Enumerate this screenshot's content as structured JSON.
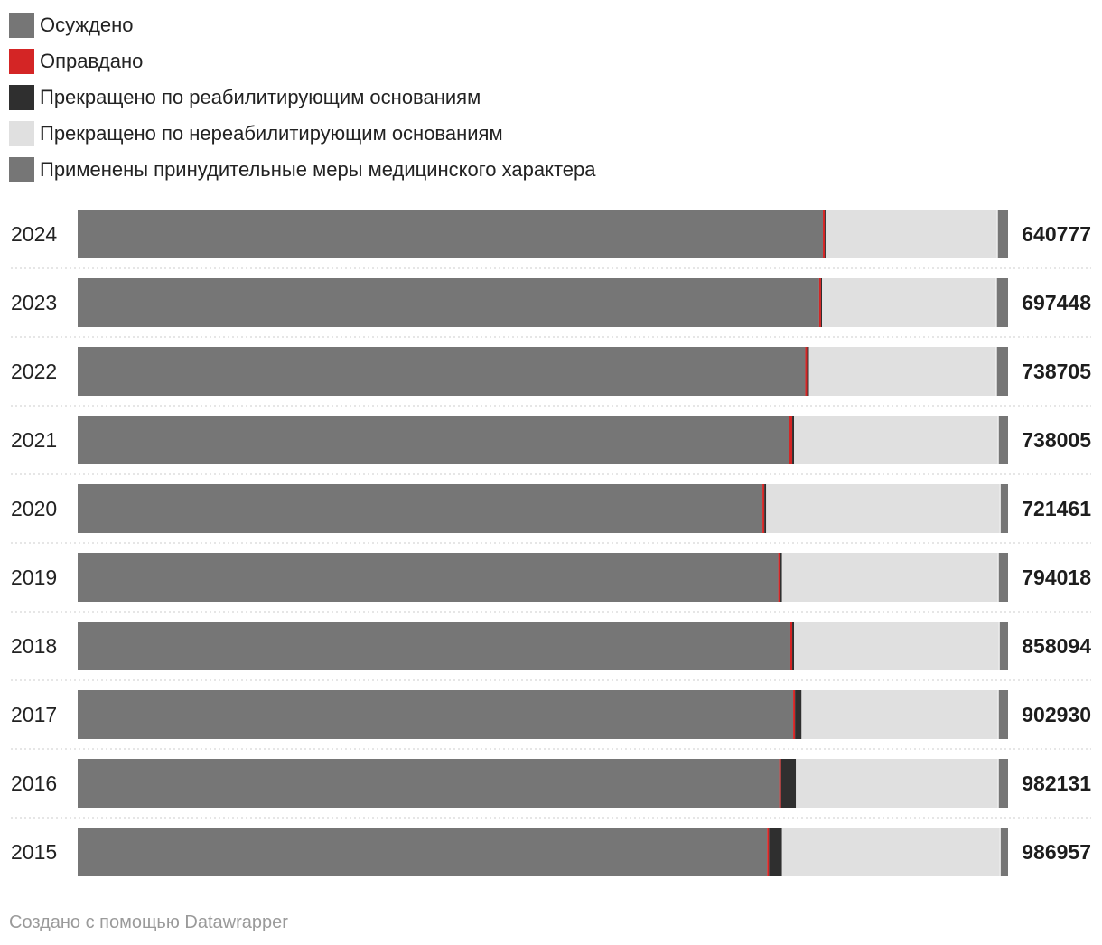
{
  "chart_data": {
    "type": "bar",
    "orientation": "horizontal",
    "stacked": "percent",
    "legend_position": "top-left",
    "categories": [
      "2024",
      "2023",
      "2022",
      "2021",
      "2020",
      "2019",
      "2018",
      "2017",
      "2016",
      "2015"
    ],
    "totals": [
      "640777",
      "697448",
      "738705",
      "738005",
      "721461",
      "794018",
      "858094",
      "902930",
      "982131",
      "986957"
    ],
    "series": [
      {
        "name": "Осуждено",
        "color": "#767676",
        "values": [
          80.1,
          79.7,
          78.2,
          76.5,
          73.6,
          75.3,
          76.6,
          76.9,
          75.4,
          74.1
        ]
      },
      {
        "name": "Оправдано",
        "color": "#d42525",
        "values": [
          0.2,
          0.2,
          0.2,
          0.3,
          0.2,
          0.2,
          0.2,
          0.2,
          0.2,
          0.2
        ]
      },
      {
        "name": "Прекращено по реабилитирующим основаниям",
        "color": "#2f2f2f",
        "values": [
          0.1,
          0.1,
          0.2,
          0.2,
          0.2,
          0.2,
          0.2,
          0.7,
          1.6,
          1.4
        ]
      },
      {
        "name": "Прекращено по нереабилитирующим основаниям",
        "color": "#e0e0e0",
        "values": [
          18.5,
          18.8,
          20.2,
          22.0,
          25.2,
          23.3,
          22.1,
          21.2,
          21.8,
          23.5
        ]
      },
      {
        "name": "Применены принудительные меры медицинского характера",
        "color": "#767676",
        "values": [
          1.1,
          1.2,
          1.2,
          1.0,
          0.8,
          1.0,
          0.9,
          1.0,
          1.0,
          0.8
        ]
      }
    ]
  },
  "footer": "Создано с помощью Datawrapper"
}
